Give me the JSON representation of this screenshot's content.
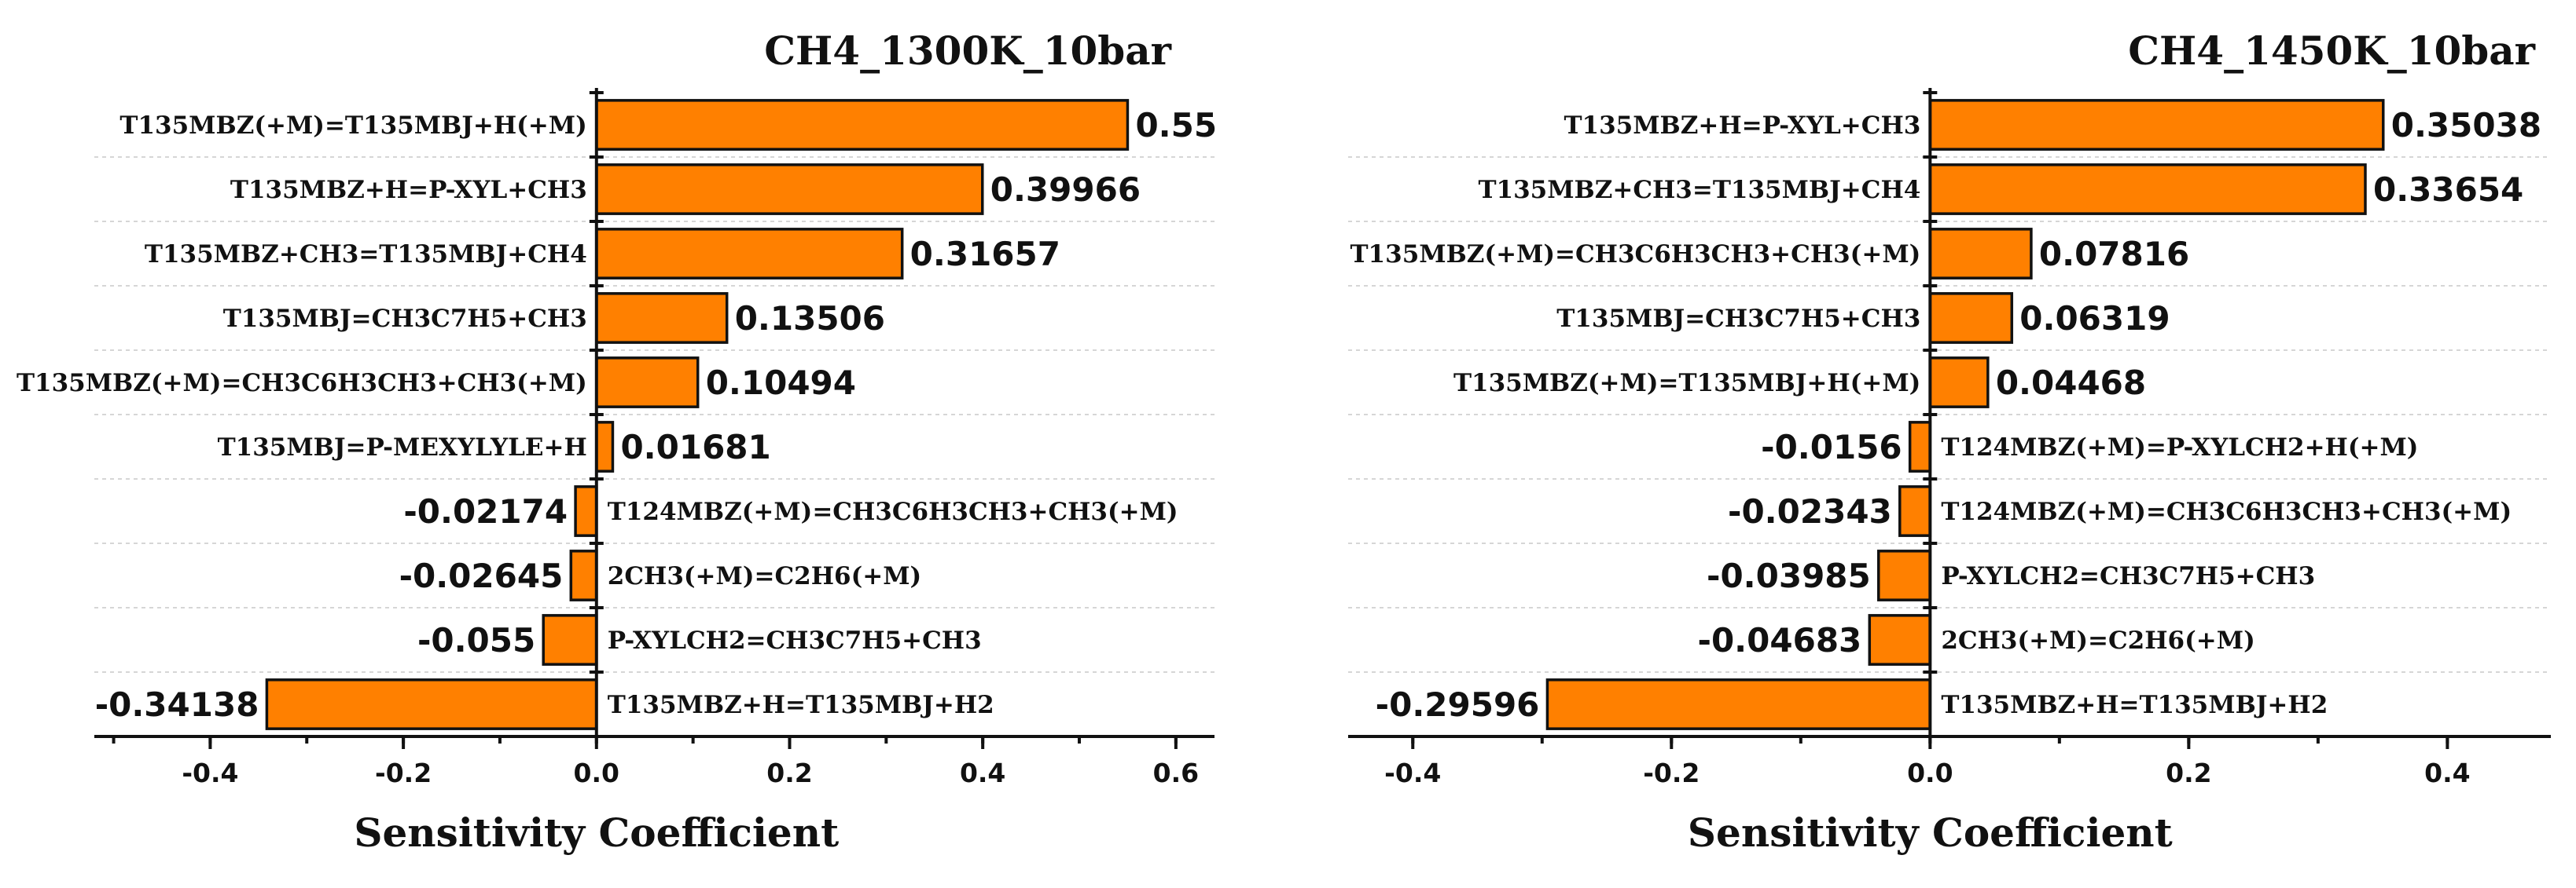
{
  "chart_data": [
    {
      "type": "bar",
      "orientation": "horizontal",
      "title": "CH4_1300K_10bar",
      "xlabel": "Sensitivity Coefficient",
      "xlim": [
        -0.52,
        0.64
      ],
      "xticks": [
        -0.4,
        -0.2,
        0.0,
        0.2,
        0.4,
        0.6
      ],
      "xtick_labels": [
        "-0.4",
        "-0.2",
        "0.0",
        "0.2",
        "0.4",
        "0.6"
      ],
      "bar_color": "#ff8000",
      "grid": "horizontal-dashed",
      "categories": [
        "T135MBZ(+M)=T135MBJ+H(+M)",
        "T135MBZ+H=P-XYL+CH3",
        "T135MBZ+CH3=T135MBJ+CH4",
        "T135MBJ=CH3C7H5+CH3",
        "T135MBZ(+M)=CH3C6H3CH3+CH3(+M)",
        "T135MBJ=P-MEXYLYLE+H",
        "T124MBZ(+M)=CH3C6H3CH3+CH3(+M)",
        "2CH3(+M)=C2H6(+M)",
        "P-XYLCH2=CH3C7H5+CH3",
        "T135MBZ+H=T135MBJ+H2"
      ],
      "values": [
        0.55,
        0.39966,
        0.31657,
        0.13506,
        0.10494,
        0.01681,
        -0.02174,
        -0.02645,
        -0.055,
        -0.34138
      ],
      "value_labels": [
        "0.55",
        "0.39966",
        "0.31657",
        "0.13506",
        "0.10494",
        "0.01681",
        "-0.02174",
        "-0.02645",
        "-0.055",
        "-0.34138"
      ]
    },
    {
      "type": "bar",
      "orientation": "horizontal",
      "title": "CH4_1450K_10bar",
      "xlabel": "Sensitivity Coefficient",
      "xlim": [
        -0.45,
        0.48
      ],
      "xticks": [
        -0.4,
        -0.2,
        0.0,
        0.2,
        0.4
      ],
      "xtick_labels": [
        "-0.4",
        "-0.2",
        "0.0",
        "0.2",
        "0.4"
      ],
      "bar_color": "#ff8000",
      "grid": "horizontal-dashed",
      "categories": [
        "T135MBZ+H=P-XYL+CH3",
        "T135MBZ+CH3=T135MBJ+CH4",
        "T135MBZ(+M)=CH3C6H3CH3+CH3(+M)",
        "T135MBJ=CH3C7H5+CH3",
        "T135MBZ(+M)=T135MBJ+H(+M)",
        "T124MBZ(+M)=P-XYLCH2+H(+M)",
        "T124MBZ(+M)=CH3C6H3CH3+CH3(+M)",
        "P-XYLCH2=CH3C7H5+CH3",
        "2CH3(+M)=C2H6(+M)",
        "T135MBZ+H=T135MBJ+H2"
      ],
      "values": [
        0.35038,
        0.33654,
        0.07816,
        0.06319,
        0.04468,
        -0.0156,
        -0.02343,
        -0.03985,
        -0.04683,
        -0.29596
      ],
      "value_labels": [
        "0.35038",
        "0.33654",
        "0.07816",
        "0.06319",
        "0.04468",
        "-0.0156",
        "-0.02343",
        "-0.03985",
        "-0.04683",
        "-0.29596"
      ]
    }
  ]
}
